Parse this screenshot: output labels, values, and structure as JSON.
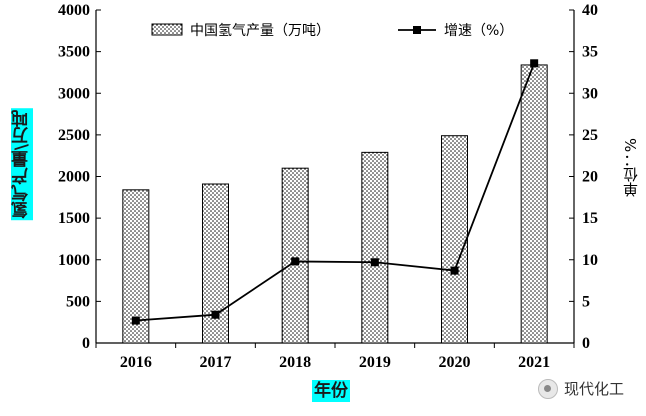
{
  "chart_data": {
    "type": "bar+line",
    "categories": [
      "2016",
      "2017",
      "2018",
      "2019",
      "2020",
      "2021"
    ],
    "series": [
      {
        "name": "中国氢气产量（万吨）",
        "type": "bar",
        "axis": "left",
        "values": [
          1840,
          1910,
          2100,
          2290,
          2490,
          3340
        ]
      },
      {
        "name": "增速（%）",
        "type": "line",
        "axis": "right",
        "values": [
          2.7,
          3.4,
          9.8,
          9.7,
          8.7,
          33.6
        ]
      }
    ],
    "y_left": {
      "label": "氢气产量\\万吨",
      "ylim": [
        0,
        4000
      ],
      "ticks": [
        "0",
        "500",
        "1000",
        "1500",
        "2000",
        "2500",
        "3000",
        "3500",
        "4000"
      ]
    },
    "y_right": {
      "label": "单位：%",
      "ylim": [
        0,
        40
      ],
      "ticks": [
        "0",
        "5",
        "10",
        "15",
        "20",
        "25",
        "30",
        "35",
        "40"
      ]
    },
    "xlabel": "年份",
    "legend": "top-center",
    "grid": false,
    "bar_pattern": "dotted",
    "colors": {
      "bar_fill": "#ffffff",
      "bar_dots": "#000000",
      "line": "#000000",
      "label_highlight": "#00ffff"
    }
  },
  "watermark": {
    "text": "现代化工"
  }
}
